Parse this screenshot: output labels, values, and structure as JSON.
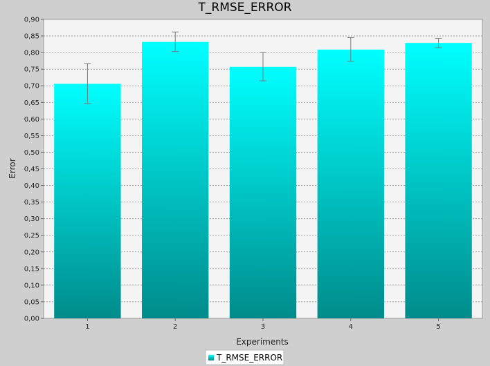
{
  "chart_data": {
    "type": "bar",
    "title": "T_RMSE_ERROR",
    "xlabel": "Experiments",
    "ylabel": "Error",
    "categories": [
      "1",
      "2",
      "3",
      "4",
      "5"
    ],
    "series": [
      {
        "name": "T_RMSE_ERROR",
        "values": [
          0.706,
          0.832,
          0.757,
          0.809,
          0.829
        ],
        "error_low": [
          0.647,
          0.803,
          0.715,
          0.774,
          0.815
        ],
        "error_high": [
          0.767,
          0.862,
          0.8,
          0.845,
          0.843
        ]
      }
    ],
    "ylim": [
      0,
      0.9
    ],
    "yticks": [
      "0,00",
      "0,05",
      "0,10",
      "0,15",
      "0,20",
      "0,25",
      "0,30",
      "0,35",
      "0,40",
      "0,45",
      "0,50",
      "0,55",
      "0,60",
      "0,65",
      "0,70",
      "0,75",
      "0,80",
      "0,85",
      "0,90"
    ],
    "grid": true,
    "legend_position": "bottom",
    "colors": {
      "bar_top": "#00ffff",
      "bar_bottom": "#008b8b",
      "plot_background": "#f4f4f4",
      "page_background": "#cfcfcf"
    }
  }
}
